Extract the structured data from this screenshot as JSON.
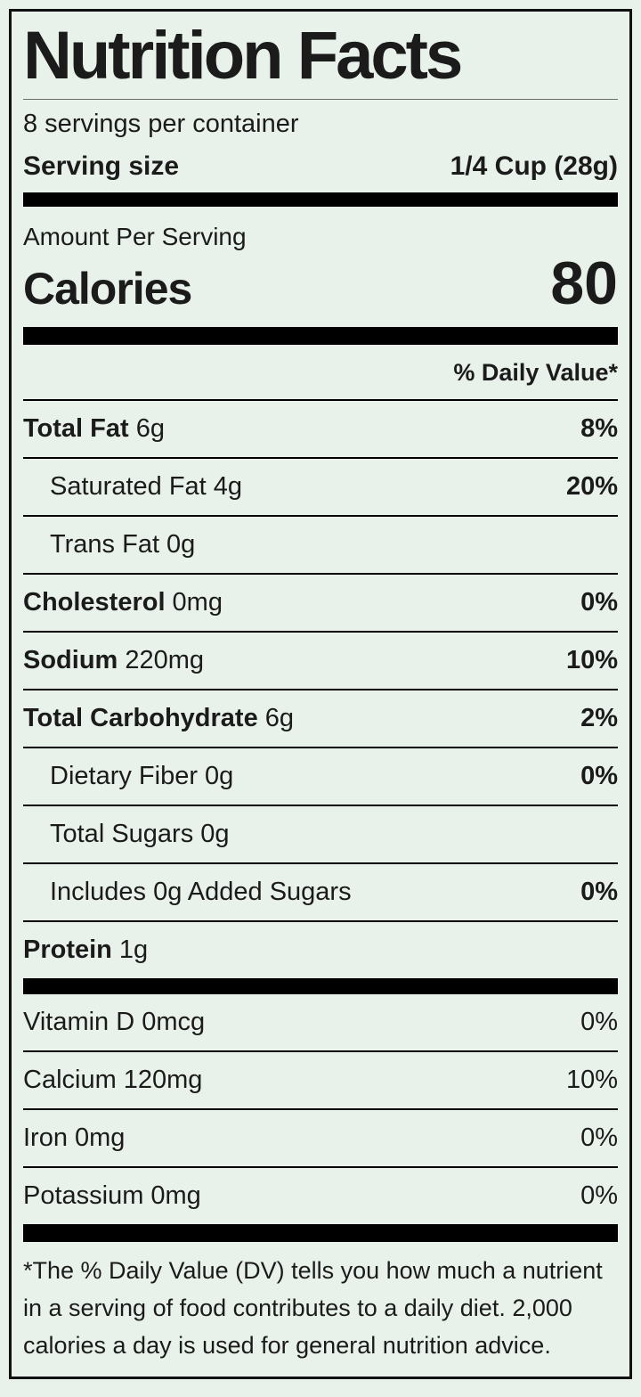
{
  "label": {
    "title": "Nutrition Facts",
    "servings_per_container": "8 servings per container",
    "serving_size_label": "Serving size",
    "serving_size_value": "1/4 Cup (28g)",
    "amount_per_serving": "Amount Per Serving",
    "calories_label": "Calories",
    "calories_value": "80",
    "daily_value_header": "% Daily Value*",
    "nutrients": [
      {
        "name": "Total Fat",
        "amount": "6g",
        "dv": "8%"
      },
      {
        "name": "Saturated Fat",
        "amount": "4g",
        "dv": "20%"
      },
      {
        "name": "Trans Fat",
        "amount": "0g",
        "dv": ""
      },
      {
        "name": "Cholesterol",
        "amount": "0mg",
        "dv": "0%"
      },
      {
        "name": "Sodium",
        "amount": "220mg",
        "dv": "10%"
      },
      {
        "name": "Total Carbohydrate",
        "amount": "6g",
        "dv": "2%"
      },
      {
        "name": "Dietary Fiber",
        "amount": "0g",
        "dv": "0%"
      },
      {
        "name": "Total Sugars",
        "amount": "0g",
        "dv": ""
      },
      {
        "name": "Includes 0g Added Sugars",
        "amount": "",
        "dv": "0%"
      },
      {
        "name": "Protein",
        "amount": "1g",
        "dv": ""
      }
    ],
    "micronutrients": [
      {
        "name": "Vitamin D",
        "amount": "0mcg",
        "dv": "0%"
      },
      {
        "name": "Calcium",
        "amount": "120mg",
        "dv": "10%"
      },
      {
        "name": "Iron",
        "amount": "0mg",
        "dv": "0%"
      },
      {
        "name": "Potassium",
        "amount": "0mg",
        "dv": "0%"
      }
    ],
    "footnote": "*The % Daily Value (DV) tells you how much a nutrient in a serving of food contributes to a daily diet. 2,000 calories a day is used for general nutrition advice."
  },
  "colors": {
    "background": "#e9f2ea",
    "text": "#1b1b1b",
    "rule": "#000000"
  }
}
